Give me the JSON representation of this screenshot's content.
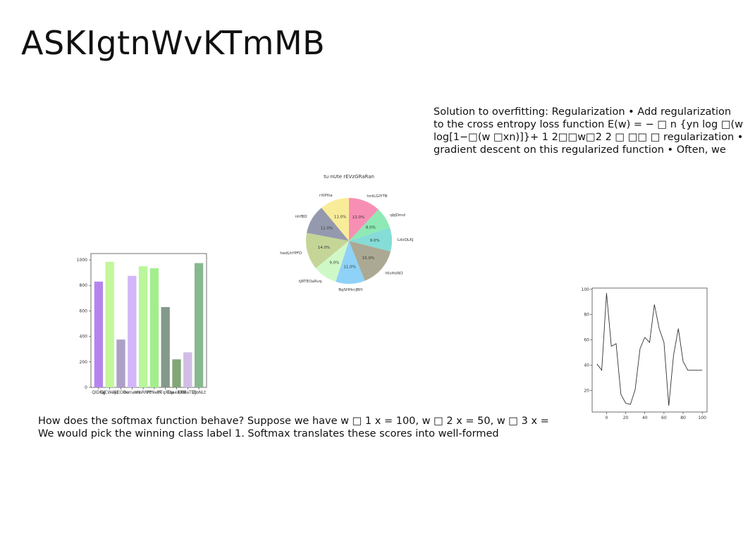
{
  "slide": {
    "title": "ASKIgtnWvKTmMB",
    "text_top": "Solution to overfitting: Regularization • Add regularization\nto the cross entropy loss function E(w) = − □ n {yn log □(w\nlog[1−□(w □xn)]}+ 1 2□□w□2 2 □ □□ □ regularization •\ngradient descent on this regularized function • Often, we",
    "text_bottom": "How does the softmax function behave? Suppose we have w □ 1 x = 100, w □ 2 x = 50, w □ 3 x =\nWe would pick the winning class label 1. Softmax translates these scores into well-formed"
  },
  "chart_data": [
    {
      "type": "bar",
      "categories": [
        "QlDFaJ",
        "QjCWeyE",
        "lRCOOe",
        "Bcmarrk",
        "VmRRrP",
        "PcNeIN",
        "hTqXOa",
        "TqaeEXM",
        "XRBaTtZr",
        "ZJoNLt"
      ],
      "values": [
        830,
        985,
        375,
        875,
        950,
        935,
        630,
        220,
        275,
        975
      ],
      "colors": [
        "#b683ee",
        "#c2f79a",
        "#ad9fc6",
        "#d3b6f9",
        "#b9f79a",
        "#a3ee8c",
        "#84998a",
        "#82a676",
        "#d1bde5",
        "#86b98f"
      ],
      "ylim": [
        0,
        1050
      ],
      "yticks": [
        0,
        200,
        400,
        600,
        800,
        1000
      ],
      "title": "",
      "xlabel": "",
      "ylabel": ""
    },
    {
      "type": "pie",
      "title": "tu nUte rEVzGRaRan",
      "labels": [
        "tmtLGIYTB",
        "qbJDmd",
        "LdxQLKJ",
        "HivHoNO",
        "BqSHHcrJBH",
        "tJRTEOaRvq",
        "hedLhYPFD",
        "nIrfBD",
        "rXIPtta"
      ],
      "values": [
        12.0,
        8.0,
        9.0,
        15.0,
        11.0,
        9.0,
        14.0,
        11.0,
        11.0
      ],
      "value_labels": [
        "12.0%",
        "8.0%",
        "9.0%",
        "15.0%",
        "11.0%",
        "9.0%",
        "14.0%",
        "11.0%",
        "11.0%"
      ],
      "colors": [
        "#f78fb5",
        "#8ee9b4",
        "#86dcd7",
        "#aba993",
        "#8ed2f7",
        "#cff8c7",
        "#c5d597",
        "#9599ae",
        "#f9ec99"
      ]
    },
    {
      "type": "line",
      "x": [
        -10,
        -5,
        0,
        5,
        10,
        15,
        20,
        25,
        30,
        35,
        40,
        45,
        50,
        55,
        60,
        65,
        70,
        75,
        80,
        85,
        90,
        95,
        100
      ],
      "y": [
        41,
        36,
        97,
        55,
        57,
        17,
        10,
        9,
        21,
        53,
        62,
        58,
        88,
        69,
        58,
        8,
        48,
        69,
        43,
        36,
        36,
        36,
        36
      ],
      "xlim": [
        -15,
        105
      ],
      "ylim": [
        3,
        101
      ],
      "xticks": [
        0,
        20,
        40,
        60,
        80,
        100
      ],
      "yticks": [
        20,
        40,
        60,
        80,
        100
      ],
      "color": "#333333",
      "title": "",
      "xlabel": "",
      "ylabel": ""
    }
  ]
}
